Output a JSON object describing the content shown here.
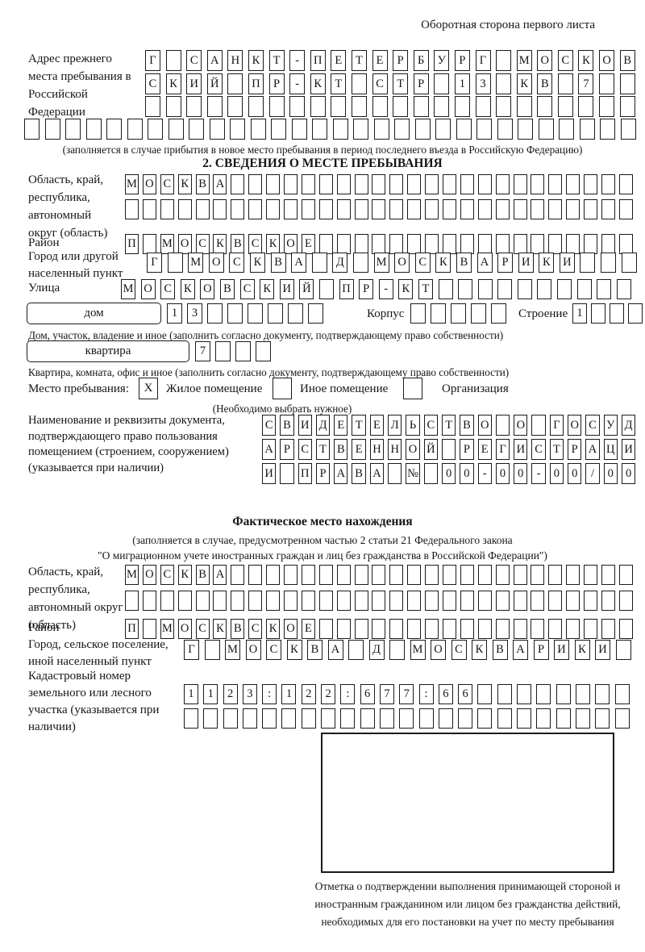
{
  "page": {
    "header_note": "Оборотная сторона первого листа"
  },
  "prev": {
    "label": "Адрес прежнего места пребывания в Российской Федерации",
    "rows": [
      {
        "text": "Г САНКТ-ПЕТЕРБУРГ МОСКОВ",
        "cells": 24
      },
      {
        "text": "СКИЙ ПР-КТ СТР 13 КВ 7",
        "cells": 24
      },
      {
        "text": "",
        "cells": 24
      },
      {
        "text": "",
        "cells": 30
      }
    ],
    "note": "(заполняется в случае прибытия в новое место пребывания в период последнего въезда в Российскую Федерацию)"
  },
  "s2": {
    "title": "2. СВЕДЕНИЯ О МЕСТЕ ПРЕБЫВАНИЯ",
    "region": {
      "label": "Область, край, республика, автономный округ (область)",
      "rows": [
        {
          "text": "МОСКВА",
          "cells": 29
        },
        {
          "text": "",
          "cells": 29
        }
      ]
    },
    "district": {
      "label": "Район",
      "row": {
        "text": "П МОСКВСКОЕ",
        "cells": 29
      }
    },
    "city": {
      "label": "Город или другой населенный пункт",
      "row": {
        "text": "Г МОСКВА Д МОСКВАРИКИ",
        "cells": 24
      }
    },
    "street": {
      "label": "Улица",
      "row": {
        "text": "МОСКОВСКИЙ ПР-КТ",
        "cells": 26
      }
    },
    "house": {
      "box_label": "дом",
      "cells": {
        "text": "13",
        "cells": 8
      },
      "korpus_label": "Корпус",
      "korpus_cells": {
        "text": "",
        "cells": 5
      },
      "stroenie_label": "Строение",
      "stroenie_cells": {
        "text": "1",
        "cells": 4
      }
    },
    "house_note": "Дом, участок, владение и иное (заполнить согласно документу, подтверждающему право собственности)",
    "apartment": {
      "box_label": "квартира",
      "cells": {
        "text": "7",
        "cells": 4
      }
    },
    "apartment_note": "Квартира, комната, офис и иное (заполнить согласно документу, подтверждающему право собственности)",
    "stay": {
      "label": "Место пребывания:",
      "options": [
        {
          "mark": "X",
          "label": "Жилое помещение"
        },
        {
          "mark": "",
          "label": "Иное помещение"
        },
        {
          "mark": "",
          "label": "Организация"
        }
      ],
      "note": "(Необходимо выбрать нужное)"
    },
    "document": {
      "label": "Наименование и реквизиты документа, подтверждающего право пользования помещением (строением, сооружением) (указывается при наличии)",
      "rows": [
        {
          "text": "СВИДЕТЕЛЬСТВО О ГОСУД",
          "cells": 21
        },
        {
          "text": "АРСТВЕННОЙ РЕГИСТРАЦИ",
          "cells": 21
        },
        {
          "text": "И ПРАВА № 00-00-00/000",
          "cells": 21
        }
      ]
    }
  },
  "actual": {
    "title": "Фактическое место нахождения",
    "note1": "(заполняется в случае, предусмотренном частью 2 статьи 21 Федерального закона",
    "note2": "\"О миграционном учете иностранных граждан и лиц без гражданства в Российской Федерации\")",
    "region": {
      "label": "Область, край, республика, автономный округ (область)",
      "rows": [
        {
          "text": "МОСКВА",
          "cells": 29
        },
        {
          "text": "",
          "cells": 29
        }
      ]
    },
    "district": {
      "label": "Район",
      "row": {
        "text": "П МОСКВСКОЕ",
        "cells": 29
      }
    },
    "city": {
      "label": "Город, сельское поселение, иной населенный пункт",
      "row": {
        "text": "Г МОСКВА Д МОСКВАРИКИ",
        "cells": 22
      }
    },
    "cadastral": {
      "label": "Кадастровый номер земельного или лесного участка (указывается при наличии)",
      "rows": [
        {
          "text": "1123:122:677:66",
          "cells": 23
        },
        {
          "text": "",
          "cells": 23
        }
      ]
    },
    "stamp_note": "Отметка о подтверждении выполнения принимающей стороной и иностранным гражданином или лицом без гражданства действий, необходимых для его постановки на учет по месту пребывания"
  }
}
